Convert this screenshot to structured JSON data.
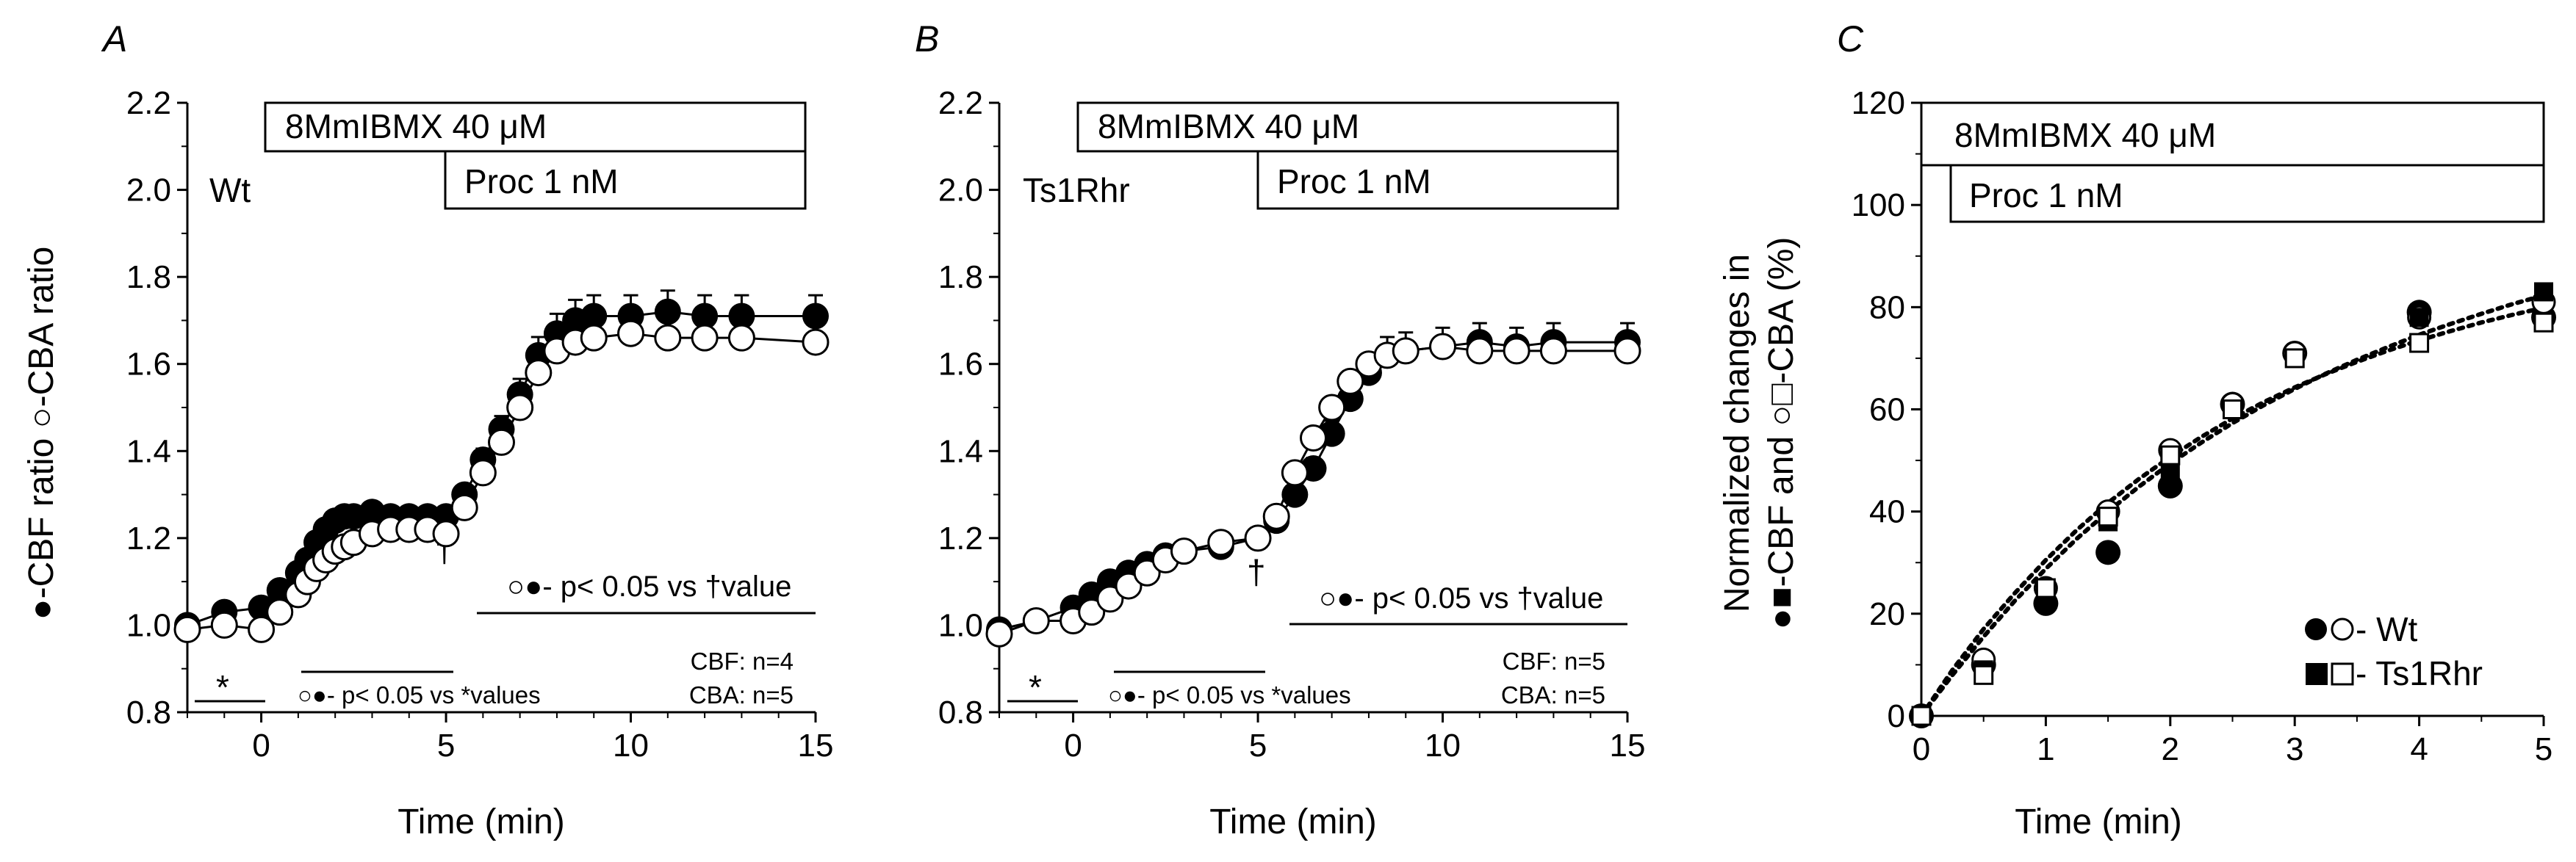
{
  "chart_data": [
    {
      "panel": "A",
      "type": "line",
      "genotype_label": "Wt",
      "ylabel": "●-CBF ratio ○-CBA ratio",
      "xlabel": "Time (min)",
      "xlim": [
        -2,
        15
      ],
      "ylim": [
        0.8,
        2.2
      ],
      "xticks": [
        0,
        5,
        10,
        15
      ],
      "yticks": [
        0.8,
        1.0,
        1.2,
        1.4,
        1.6,
        1.8,
        2.0,
        2.2
      ],
      "treatments": [
        {
          "label": "8MmIBMX 40 μM",
          "start": 0,
          "end": 15
        },
        {
          "label": "Proc 1 nM",
          "start": 5,
          "end": 15
        }
      ],
      "series": [
        {
          "name": "CBF",
          "marker": "filled-circle",
          "x": [
            -2,
            -1,
            0,
            0.5,
            1,
            1.25,
            1.5,
            1.75,
            2,
            2.25,
            2.5,
            3,
            3.5,
            4,
            4.5,
            5,
            5.5,
            6,
            6.5,
            7,
            7.5,
            8,
            8.5,
            9,
            10,
            11,
            12,
            13,
            15
          ],
          "y": [
            1.0,
            1.03,
            1.04,
            1.08,
            1.12,
            1.15,
            1.19,
            1.22,
            1.24,
            1.25,
            1.25,
            1.26,
            1.25,
            1.25,
            1.25,
            1.25,
            1.3,
            1.38,
            1.45,
            1.53,
            1.62,
            1.67,
            1.7,
            1.71,
            1.71,
            1.72,
            1.71,
            1.71,
            1.71
          ]
        },
        {
          "name": "CBA",
          "marker": "open-circle",
          "x": [
            -2,
            -1,
            0,
            0.5,
            1,
            1.25,
            1.5,
            1.75,
            2,
            2.25,
            2.5,
            3,
            3.5,
            4,
            4.5,
            5,
            5.5,
            6,
            6.5,
            7,
            7.5,
            8,
            8.5,
            9,
            10,
            11,
            12,
            13,
            15
          ],
          "y": [
            0.99,
            1.0,
            0.99,
            1.03,
            1.07,
            1.1,
            1.13,
            1.15,
            1.17,
            1.18,
            1.19,
            1.21,
            1.22,
            1.22,
            1.22,
            1.21,
            1.27,
            1.35,
            1.42,
            1.5,
            1.58,
            1.63,
            1.65,
            1.66,
            1.67,
            1.66,
            1.66,
            1.66,
            1.65
          ]
        }
      ],
      "annotations": {
        "star": "*",
        "dagger": "†",
        "sig_after": "○●- p< 0.05 vs †value",
        "sig_before": "○●- p< 0.05 vs *values",
        "n_cbf": "CBF: n=4",
        "n_cba": "CBA: n=5"
      }
    },
    {
      "panel": "B",
      "type": "line",
      "genotype_label": "Ts1Rhr",
      "xlabel": "Time (min)",
      "xlim": [
        -2,
        15
      ],
      "ylim": [
        0.8,
        2.2
      ],
      "xticks": [
        0,
        5,
        10,
        15
      ],
      "yticks": [
        0.8,
        1.0,
        1.2,
        1.4,
        1.6,
        1.8,
        2.0,
        2.2
      ],
      "treatments": [
        {
          "label": "8MmIBMX 40 μM",
          "start": 0,
          "end": 15
        },
        {
          "label": "Proc 1 nM",
          "start": 5,
          "end": 15
        }
      ],
      "series": [
        {
          "name": "CBF",
          "marker": "filled-circle",
          "x": [
            -2,
            -1,
            0,
            0.5,
            1,
            1.5,
            2,
            2.5,
            3,
            4,
            5,
            5.5,
            6,
            6.5,
            7,
            7.5,
            8,
            8.5,
            9,
            10,
            11,
            12,
            13,
            15
          ],
          "y": [
            0.99,
            1.01,
            1.04,
            1.07,
            1.1,
            1.12,
            1.14,
            1.16,
            1.17,
            1.18,
            1.2,
            1.24,
            1.3,
            1.36,
            1.44,
            1.52,
            1.58,
            1.62,
            1.63,
            1.64,
            1.65,
            1.64,
            1.65,
            1.65
          ]
        },
        {
          "name": "CBA",
          "marker": "open-circle",
          "x": [
            -2,
            -1,
            0,
            0.5,
            1,
            1.5,
            2,
            2.5,
            3,
            4,
            5,
            5.5,
            6,
            6.5,
            7,
            7.5,
            8,
            8.5,
            9,
            10,
            11,
            12,
            13,
            15
          ],
          "y": [
            0.98,
            1.01,
            1.01,
            1.03,
            1.06,
            1.09,
            1.12,
            1.15,
            1.17,
            1.19,
            1.2,
            1.25,
            1.35,
            1.43,
            1.5,
            1.56,
            1.6,
            1.62,
            1.63,
            1.64,
            1.63,
            1.63,
            1.63,
            1.63
          ]
        }
      ],
      "annotations": {
        "star": "*",
        "dagger": "†",
        "sig_after": "○●- p< 0.05 vs †value",
        "sig_before": "○●- p< 0.05 vs *values",
        "n_cbf": "CBF: n=5",
        "n_cba": "CBA: n=5"
      }
    },
    {
      "panel": "C",
      "type": "scatter",
      "ylabel_line1": "Normalized changes in",
      "ylabel_line2": "●■-CBF and ○□-CBA (%)",
      "xlabel": "Time (min)",
      "xlim": [
        0,
        5
      ],
      "ylim": [
        0,
        120
      ],
      "xticks": [
        0,
        1,
        2,
        3,
        4,
        5
      ],
      "yticks": [
        0,
        20,
        40,
        60,
        80,
        100,
        120
      ],
      "treatments": [
        {
          "label": "8MmIBMX 40 μM",
          "start": 0,
          "end": 5
        },
        {
          "label": "Proc 1 nM",
          "start": 0,
          "end": 5
        }
      ],
      "x": [
        0,
        0.5,
        1,
        1.5,
        2,
        2.5,
        3,
        4,
        5
      ],
      "series": [
        {
          "name": "Wt CBF",
          "marker": "filled-circle",
          "y": [
            0,
            10,
            22,
            32,
            45,
            61,
            71,
            79,
            78
          ]
        },
        {
          "name": "Wt CBA",
          "marker": "open-circle",
          "y": [
            0,
            11,
            25,
            40,
            52,
            61,
            71,
            78,
            81
          ]
        },
        {
          "name": "Ts1Rhr CBF",
          "marker": "filled-square",
          "y": [
            0,
            9,
            24,
            38,
            48,
            60,
            70,
            78,
            83
          ]
        },
        {
          "name": "Ts1Rhr CBA",
          "marker": "open-square",
          "y": [
            0,
            8,
            25,
            39,
            51,
            60,
            70,
            73,
            77
          ]
        }
      ],
      "fits": [
        {
          "name": "Wt fit",
          "x": [
            0,
            0.25,
            0.5,
            0.75,
            1,
            1.25,
            1.5,
            1.75,
            2,
            2.25,
            2.5,
            2.75,
            3,
            3.25,
            3.5,
            3.75,
            4,
            4.25,
            4.5,
            4.75,
            5
          ],
          "y": [
            0,
            9.0,
            17.0,
            24.0,
            30.5,
            36.4,
            41.7,
            46.4,
            50.7,
            54.6,
            58.2,
            61.4,
            64.3,
            66.9,
            69.3,
            71.5,
            73.5,
            75.3,
            77.0,
            78.5,
            79.9
          ]
        },
        {
          "name": "Ts1Rhr fit",
          "x": [
            0,
            0.25,
            0.5,
            0.75,
            1,
            1.25,
            1.5,
            1.75,
            2,
            2.25,
            2.5,
            2.75,
            3,
            3.25,
            3.5,
            3.75,
            4,
            4.25,
            4.5,
            4.75,
            5
          ],
          "y": [
            0,
            8.0,
            15.5,
            22.5,
            28.8,
            34.7,
            40.0,
            44.9,
            49.4,
            53.5,
            57.3,
            60.8,
            64.0,
            67.0,
            69.7,
            72.2,
            74.6,
            76.7,
            78.7,
            80.6,
            82.3
          ]
        }
      ],
      "legend": [
        {
          "symbols": "filled-circle,open-circle",
          "label": "- Wt"
        },
        {
          "symbols": "filled-square,open-square",
          "label": "- Ts1Rhr"
        }
      ]
    }
  ]
}
